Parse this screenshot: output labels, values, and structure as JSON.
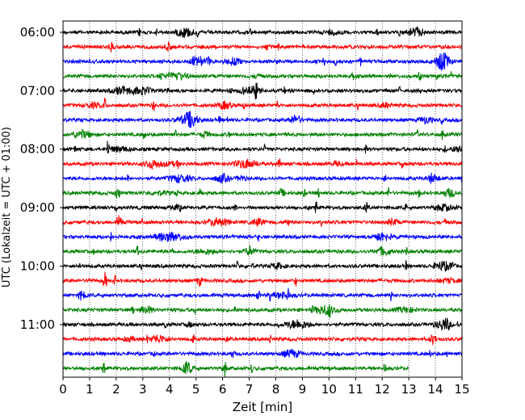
{
  "chart_data": {
    "type": "line",
    "xlabel": "Zeit  [min]",
    "ylabel": "UTC (Lokalzeit = UTC + 01:00)",
    "xlim": [
      0,
      15
    ],
    "x_ticks": [
      "0",
      "1",
      "2",
      "3",
      "4",
      "5",
      "6",
      "7",
      "8",
      "9",
      "10",
      "11",
      "12",
      "13",
      "14",
      "15"
    ],
    "y_ticks": [
      "06:00",
      "07:00",
      "08:00",
      "09:00",
      "10:00",
      "11:00"
    ],
    "grid": "vertical dotted",
    "row_minutes": 15,
    "rows": [
      {
        "start": "06:00",
        "color": "#000000",
        "end_min": 15
      },
      {
        "start": "06:15",
        "color": "#ff0000",
        "end_min": 15
      },
      {
        "start": "06:30",
        "color": "#0000ff",
        "end_min": 15
      },
      {
        "start": "06:45",
        "color": "#008000",
        "end_min": 15
      },
      {
        "start": "07:00",
        "color": "#000000",
        "end_min": 15
      },
      {
        "start": "07:15",
        "color": "#ff0000",
        "end_min": 15
      },
      {
        "start": "07:30",
        "color": "#0000ff",
        "end_min": 15
      },
      {
        "start": "07:45",
        "color": "#008000",
        "end_min": 15
      },
      {
        "start": "08:00",
        "color": "#000000",
        "end_min": 15
      },
      {
        "start": "08:15",
        "color": "#ff0000",
        "end_min": 15
      },
      {
        "start": "08:30",
        "color": "#0000ff",
        "end_min": 15
      },
      {
        "start": "08:45",
        "color": "#008000",
        "end_min": 15
      },
      {
        "start": "09:00",
        "color": "#000000",
        "end_min": 15
      },
      {
        "start": "09:15",
        "color": "#ff0000",
        "end_min": 15
      },
      {
        "start": "09:30",
        "color": "#0000ff",
        "end_min": 15
      },
      {
        "start": "09:45",
        "color": "#008000",
        "end_min": 15
      },
      {
        "start": "10:00",
        "color": "#000000",
        "end_min": 15
      },
      {
        "start": "10:15",
        "color": "#ff0000",
        "end_min": 15
      },
      {
        "start": "10:30",
        "color": "#0000ff",
        "end_min": 15
      },
      {
        "start": "10:45",
        "color": "#008000",
        "end_min": 15
      },
      {
        "start": "11:00",
        "color": "#000000",
        "end_min": 15
      },
      {
        "start": "11:15",
        "color": "#ff0000",
        "end_min": 15
      },
      {
        "start": "11:30",
        "color": "#0000ff",
        "end_min": 15
      },
      {
        "start": "11:45",
        "color": "#008000",
        "end_min": 13
      }
    ]
  }
}
